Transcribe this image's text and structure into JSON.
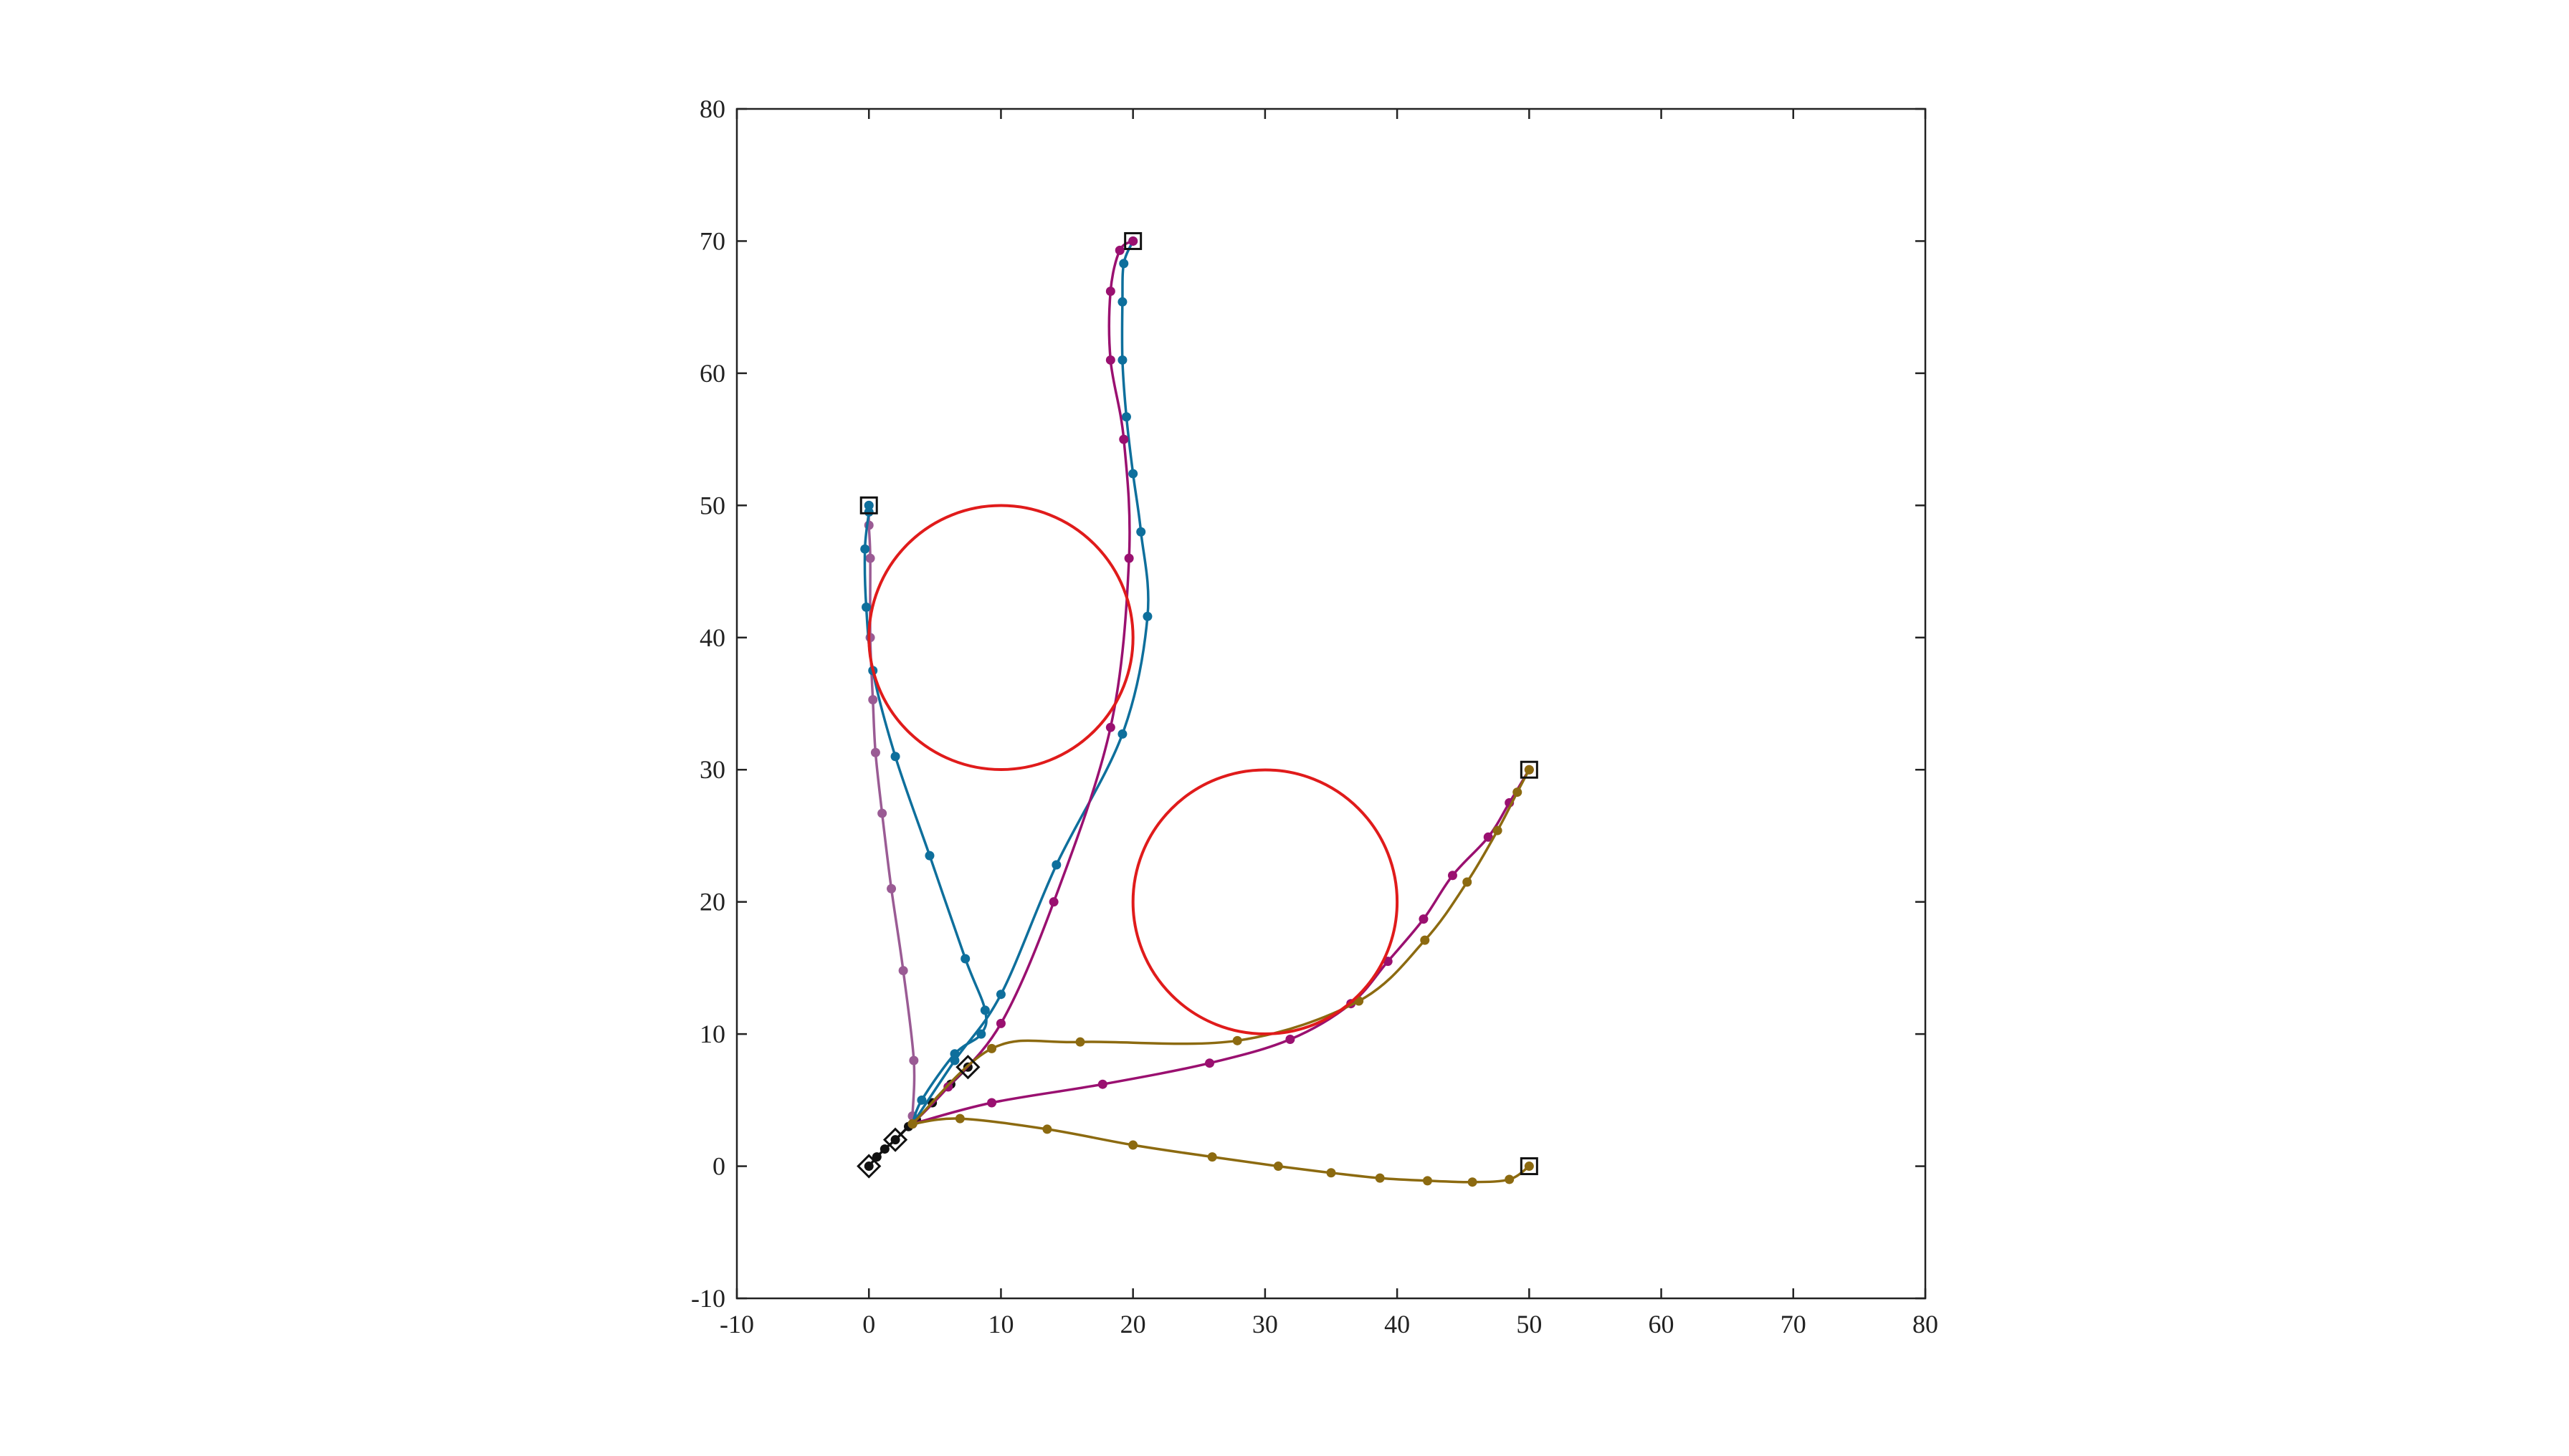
{
  "chart_data": {
    "type": "line",
    "title": "",
    "xlabel": "",
    "ylabel": "",
    "xlim": [
      -10,
      80
    ],
    "ylim": [
      -10,
      80
    ],
    "x_ticks": [
      -10,
      0,
      10,
      20,
      30,
      40,
      50,
      60,
      70,
      80
    ],
    "y_ticks": [
      -10,
      0,
      10,
      20,
      30,
      40,
      50,
      60,
      70,
      80
    ],
    "x_tick_labels": [
      "-10",
      "0",
      "10",
      "20",
      "30",
      "40",
      "50",
      "60",
      "70",
      "80"
    ],
    "y_tick_labels": [
      "-10",
      "0",
      "10",
      "20",
      "30",
      "40",
      "50",
      "60",
      "70",
      "80"
    ],
    "grid": false,
    "legend": "none",
    "obstacles": [
      {
        "center": [
          10,
          40
        ],
        "radius": 10,
        "color": "#e01b1b"
      },
      {
        "center": [
          30,
          20
        ],
        "radius": 10,
        "color": "#e01b1b"
      }
    ],
    "goals": [
      [
        0,
        50
      ],
      [
        20,
        70
      ],
      [
        50,
        30
      ],
      [
        50,
        0
      ]
    ],
    "waypoints": [
      [
        0,
        0
      ],
      [
        2,
        2
      ],
      [
        7.5,
        7.5
      ]
    ],
    "series": [
      {
        "color": "#111111",
        "points": [
          [
            0,
            0
          ],
          [
            0.6,
            0.7
          ],
          [
            1.2,
            1.3
          ],
          [
            2,
            2
          ],
          [
            3,
            3
          ],
          [
            3.6,
            3.5
          ],
          [
            4.8,
            4.8
          ],
          [
            6.2,
            6.2
          ],
          [
            7.5,
            7.5
          ]
        ]
      },
      {
        "color": "#9a5b94",
        "points": [
          [
            3.3,
            3.2
          ],
          [
            3.3,
            3.8
          ],
          [
            3.4,
            8
          ],
          [
            2.6,
            14.8
          ],
          [
            1.7,
            21
          ],
          [
            1.0,
            26.7
          ],
          [
            0.5,
            31.3
          ],
          [
            0.3,
            35.3
          ],
          [
            0.1,
            40
          ],
          [
            0.1,
            46
          ],
          [
            0.0,
            48.5
          ],
          [
            0,
            50
          ]
        ]
      },
      {
        "color": "#0e6f9c",
        "points": [
          [
            3.3,
            3.2
          ],
          [
            4,
            5
          ],
          [
            6.5,
            8.5
          ],
          [
            8.5,
            10
          ],
          [
            8.8,
            11.8
          ],
          [
            7.3,
            15.7
          ],
          [
            4.6,
            23.5
          ],
          [
            2,
            31
          ],
          [
            0.3,
            37.5
          ],
          [
            -0.2,
            42.3
          ],
          [
            -0.3,
            46.7
          ],
          [
            0,
            49.5
          ],
          [
            0,
            50
          ]
        ]
      },
      {
        "color": "#0e6f9c",
        "points": [
          [
            3.3,
            3.2
          ],
          [
            6.5,
            8
          ],
          [
            10,
            13
          ],
          [
            14.2,
            22.8
          ],
          [
            19.2,
            32.7
          ],
          [
            21.1,
            41.6
          ],
          [
            20.6,
            48
          ],
          [
            20,
            52.4
          ],
          [
            19.5,
            56.7
          ],
          [
            19.2,
            61
          ],
          [
            19.2,
            65.4
          ],
          [
            19.3,
            68.3
          ],
          [
            20,
            70
          ]
        ]
      },
      {
        "color": "#9a1070",
        "points": [
          [
            3.3,
            3.2
          ],
          [
            6,
            6
          ],
          [
            10,
            10.8
          ],
          [
            14,
            20
          ],
          [
            18.3,
            33.2
          ],
          [
            19.7,
            46
          ],
          [
            19.3,
            55
          ],
          [
            18.3,
            61
          ],
          [
            18.3,
            66.2
          ],
          [
            19,
            69.3
          ],
          [
            20,
            70
          ]
        ]
      },
      {
        "color": "#9a1070",
        "points": [
          [
            3.3,
            3.2
          ],
          [
            9.3,
            4.8
          ],
          [
            17.7,
            6.2
          ],
          [
            25.8,
            7.8
          ],
          [
            31.9,
            9.6
          ],
          [
            36.5,
            12.3
          ],
          [
            39.3,
            15.5
          ],
          [
            42,
            18.7
          ],
          [
            44.2,
            22
          ],
          [
            46.9,
            24.9
          ],
          [
            48.5,
            27.5
          ],
          [
            50,
            30
          ]
        ]
      },
      {
        "color": "#8c6a10",
        "points": [
          [
            3.3,
            3.2
          ],
          [
            9.3,
            8.9
          ],
          [
            16,
            9.4
          ],
          [
            27.9,
            9.5
          ],
          [
            37.1,
            12.5
          ],
          [
            42.1,
            17.1
          ],
          [
            45.3,
            21.5
          ],
          [
            47.6,
            25.4
          ],
          [
            49.1,
            28.3
          ],
          [
            50,
            30
          ]
        ]
      },
      {
        "color": "#8c6a10",
        "points": [
          [
            3.3,
            3.2
          ],
          [
            6.9,
            3.6
          ],
          [
            13.5,
            2.8
          ],
          [
            20,
            1.6
          ],
          [
            26,
            0.7
          ],
          [
            31,
            0
          ],
          [
            35,
            -0.5
          ],
          [
            38.7,
            -0.9
          ],
          [
            42.3,
            -1.1
          ],
          [
            45.7,
            -1.2
          ],
          [
            48.5,
            -1
          ],
          [
            50,
            0
          ]
        ]
      }
    ]
  }
}
